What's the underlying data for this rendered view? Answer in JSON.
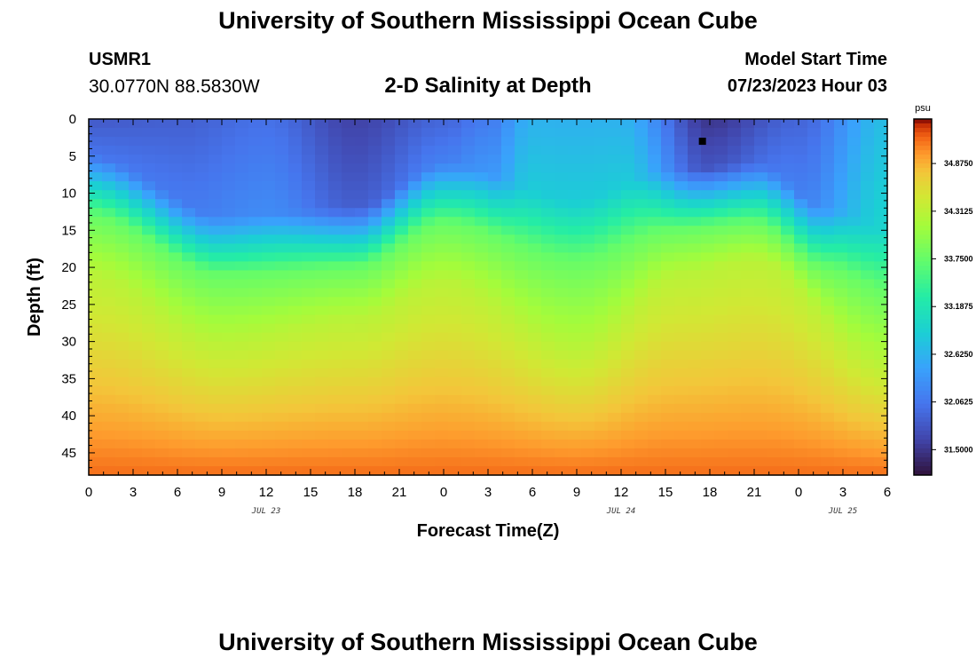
{
  "header": {
    "title_top": "University of Southern Mississippi Ocean Cube",
    "title_bottom": "University of Southern Mississippi Ocean Cube",
    "station_id": "USMR1",
    "station_coords": "30.0770N  88.5830W",
    "subtitle": "2-D Salinity at Depth",
    "start_label": "Model Start Time",
    "start_value": "07/23/2023 Hour 03"
  },
  "colors": {
    "background": "#ffffff",
    "marker": "#000000"
  },
  "chart_data": {
    "type": "heatmap",
    "title": "2-D Salinity at Depth",
    "xlabel": "Forecast Time(Z)",
    "ylabel": "Depth (ft)",
    "x_range_hours": [
      0,
      54
    ],
    "y_range_ft": [
      0,
      48
    ],
    "x_ticks": [
      {
        "hour": 0,
        "label": "0"
      },
      {
        "hour": 3,
        "label": "3"
      },
      {
        "hour": 6,
        "label": "6"
      },
      {
        "hour": 9,
        "label": "9"
      },
      {
        "hour": 12,
        "label": "12"
      },
      {
        "hour": 15,
        "label": "15"
      },
      {
        "hour": 18,
        "label": "18"
      },
      {
        "hour": 21,
        "label": "21"
      },
      {
        "hour": 24,
        "label": "0"
      },
      {
        "hour": 27,
        "label": "3"
      },
      {
        "hour": 30,
        "label": "6"
      },
      {
        "hour": 33,
        "label": "9"
      },
      {
        "hour": 36,
        "label": "12"
      },
      {
        "hour": 39,
        "label": "15"
      },
      {
        "hour": 42,
        "label": "18"
      },
      {
        "hour": 45,
        "label": "21"
      },
      {
        "hour": 48,
        "label": "0"
      },
      {
        "hour": 51,
        "label": "3"
      },
      {
        "hour": 54,
        "label": "6"
      }
    ],
    "date_labels": [
      {
        "hour": 12,
        "label": "JUL 23"
      },
      {
        "hour": 36,
        "label": "JUL 24"
      },
      {
        "hour": 51,
        "label": "JUL 25"
      }
    ],
    "y_ticks": [
      0,
      5,
      10,
      15,
      20,
      25,
      30,
      35,
      40,
      45
    ],
    "y_tick_labels": [
      "0",
      "5",
      "10",
      "15",
      "20",
      "25",
      "30",
      "35",
      "40",
      "45"
    ],
    "colorbar": {
      "unit": "psu",
      "min": 31.2,
      "max": 35.4,
      "tick_values": [
        34.875,
        34.3125,
        33.75,
        33.1875,
        32.625,
        32.0625,
        31.5
      ],
      "tick_labels": [
        "34.8750",
        "34.3125",
        "33.7500",
        "33.1875",
        "32.6250",
        "32.0625",
        "31.5000"
      ]
    },
    "halocline_depth_ft": [
      {
        "hour": 0,
        "depth": 10
      },
      {
        "hour": 9,
        "depth": 18
      },
      {
        "hour": 18,
        "depth": 17
      },
      {
        "hour": 24,
        "depth": 11
      },
      {
        "hour": 33,
        "depth": 16
      },
      {
        "hour": 39,
        "depth": 12
      },
      {
        "hour": 45,
        "depth": 11
      },
      {
        "hour": 50,
        "depth": 17
      },
      {
        "hour": 54,
        "depth": 20
      }
    ],
    "bottom_layer_top_ft": [
      {
        "hour": 0,
        "depth": 21
      },
      {
        "hour": 9,
        "depth": 30
      },
      {
        "hour": 18,
        "depth": 27
      },
      {
        "hour": 24,
        "depth": 22
      },
      {
        "hour": 33,
        "depth": 31
      },
      {
        "hour": 40,
        "depth": 21
      },
      {
        "hour": 45,
        "depth": 19
      },
      {
        "hour": 54,
        "depth": 33
      }
    ],
    "surface_salinity_psu": [
      {
        "hour": 0,
        "value": 31.8
      },
      {
        "hour": 6,
        "value": 31.85
      },
      {
        "hour": 12,
        "value": 32.0
      },
      {
        "hour": 18,
        "value": 31.6
      },
      {
        "hour": 24,
        "value": 31.9
      },
      {
        "hour": 27,
        "value": 32.1
      },
      {
        "hour": 30,
        "value": 32.6
      },
      {
        "hour": 36,
        "value": 32.6
      },
      {
        "hour": 42,
        "value": 31.5
      },
      {
        "hour": 48,
        "value": 31.9
      },
      {
        "hour": 54,
        "value": 32.7
      }
    ],
    "mid_salinity_psu": 33.75,
    "bottom_salinity_psu": 35.0,
    "marker": {
      "hour": 41.5,
      "depth": 3
    }
  }
}
